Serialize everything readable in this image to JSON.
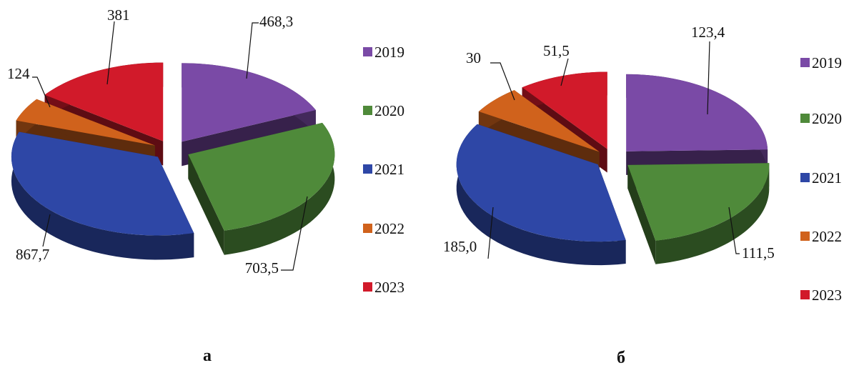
{
  "colors": {
    "2019": "#7a4aa6",
    "2020": "#4f8a3a",
    "2021": "#2e47a6",
    "2022": "#d0621c",
    "2023": "#d11a2a"
  },
  "chart_data": [
    {
      "type": "pie",
      "subtype": "3d-exploded",
      "panel_label": "а",
      "categories": [
        "2019",
        "2020",
        "2021",
        "2022",
        "2023"
      ],
      "values": [
        468.3,
        703.5,
        867.7,
        124,
        381
      ],
      "data_labels": [
        "468,3",
        "703,5",
        "867,7",
        "124",
        "381"
      ],
      "legend": {
        "entries": [
          "2019",
          "2020",
          "2021",
          "2022",
          "2023"
        ],
        "placement": "right"
      }
    },
    {
      "type": "pie",
      "subtype": "3d-exploded",
      "panel_label": "б",
      "categories": [
        "2019",
        "2020",
        "2021",
        "2022",
        "2023"
      ],
      "values": [
        123.4,
        111.5,
        185.0,
        30,
        51.5
      ],
      "data_labels": [
        "123,4",
        "111,5",
        "185,0",
        "30",
        "51,5"
      ],
      "legend": {
        "entries": [
          "2019",
          "2020",
          "2021",
          "2022",
          "2023"
        ],
        "placement": "right"
      }
    }
  ]
}
